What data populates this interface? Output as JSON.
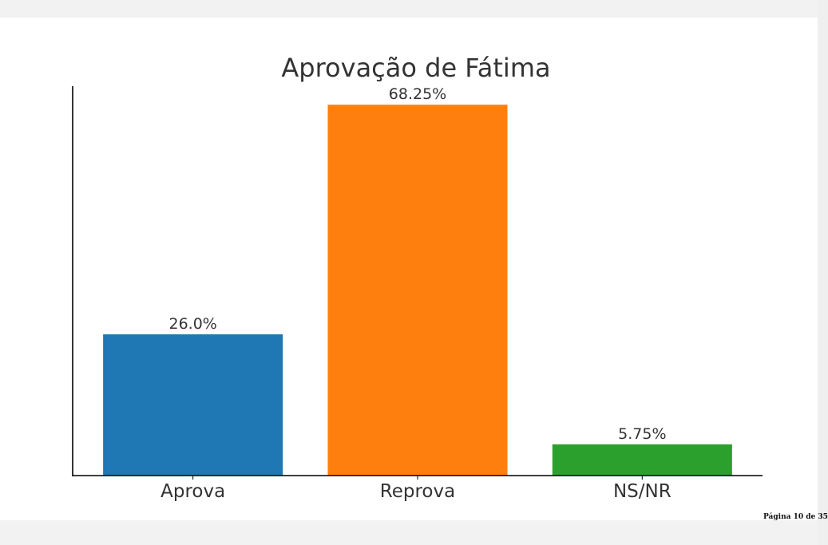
{
  "chart_data": {
    "type": "bar",
    "title": "Aprovação de Fátima",
    "categories": [
      "Aprova",
      "Reprova",
      "NS/NR"
    ],
    "values": [
      26.0,
      68.25,
      5.75
    ],
    "data_labels": [
      "26.0%",
      "68.25%",
      "5.75%"
    ],
    "colors": [
      "#1f77b4",
      "#ff7f0e",
      "#2ca02c"
    ],
    "xlabel": "",
    "ylabel": "",
    "ylim": [
      0,
      71.66
    ],
    "grid": false,
    "legend": "none"
  },
  "footer": {
    "page_number": "Página 10 de 35"
  }
}
